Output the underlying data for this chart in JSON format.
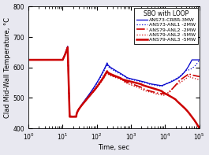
{
  "title": "SBO with LOOP",
  "xlabel": "Time, sec",
  "ylabel": "Clad Mid-Wall Temperature, °C",
  "xlim": [
    1.0,
    100000.0
  ],
  "ylim": [
    400,
    800
  ],
  "yticks": [
    400,
    500,
    600,
    700,
    800
  ],
  "legend_entries": [
    {
      "label": "ANS73-CRBR-3MW",
      "color": "#0000cc",
      "linestyle": "-",
      "linewidth": 0.9
    },
    {
      "label": "ANS73-ANL1 -2MW",
      "color": "#0000cc",
      "linestyle": ":",
      "linewidth": 0.9
    },
    {
      "label": "ANS79-ANL2 -2MW",
      "color": "#cc0000",
      "linestyle": "-.",
      "linewidth": 1.2
    },
    {
      "label": "ANS79-ANL2 -5MW",
      "color": "#cc0000",
      "linestyle": ":",
      "linewidth": 0.9
    },
    {
      "label": "ANS79-ANL3 -5MW",
      "color": "#cc0000",
      "linestyle": "-",
      "linewidth": 1.8
    }
  ],
  "background": "#e8e8f0",
  "plot_bg": "#ffffff",
  "title_fontsize": 5.5,
  "legend_fontsize": 4.5,
  "axis_label_fontsize": 6.0,
  "tick_fontsize": 5.5
}
